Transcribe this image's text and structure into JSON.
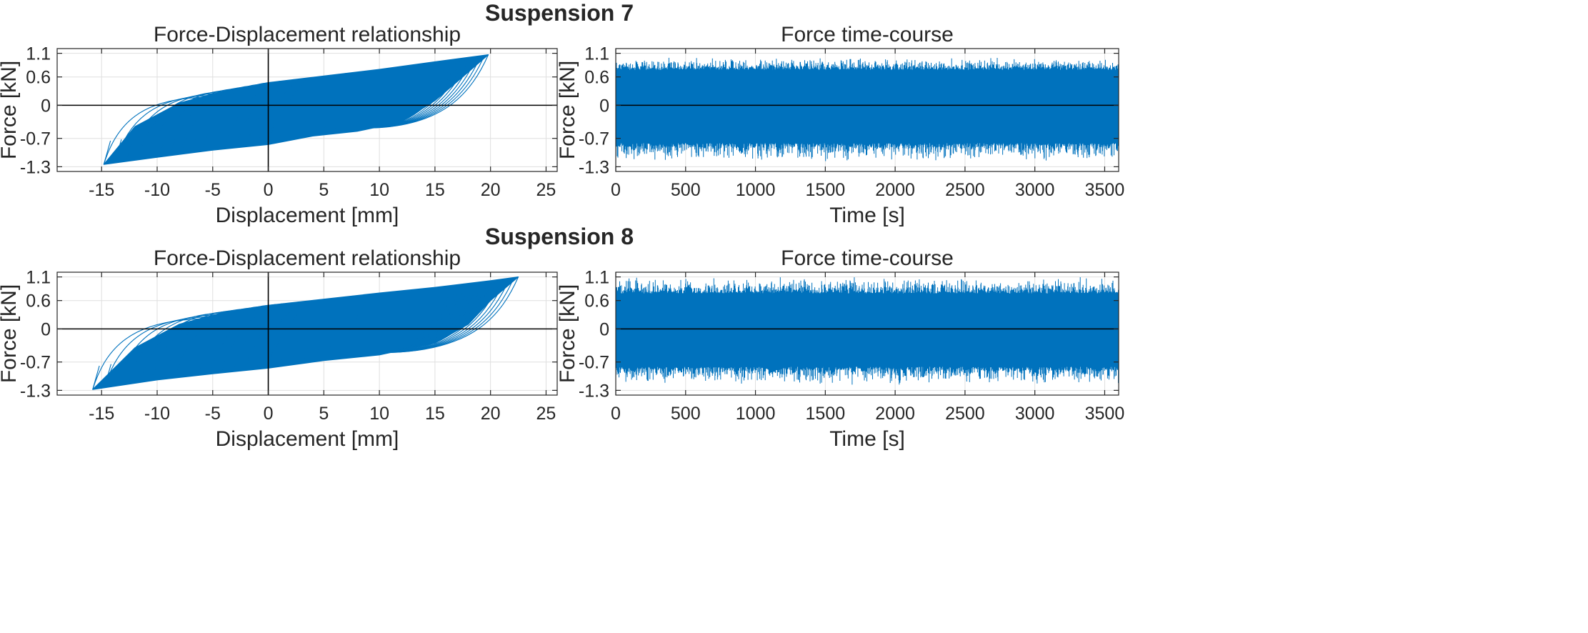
{
  "figure": {
    "sections": [
      {
        "title": "Suspension 7"
      },
      {
        "title": "Suspension 8"
      }
    ]
  },
  "colors": {
    "series": "#0072BD",
    "axis": "#262626",
    "grid": "#DFDFDF",
    "zero_line": "#000000"
  },
  "chart_data": [
    {
      "type": "line",
      "section": "Suspension 7",
      "title": "Force-Displacement relationship",
      "xlabel": "Displacement [mm]",
      "ylabel": "Force [kN]",
      "xlim": [
        -19,
        26
      ],
      "ylim": [
        -1.4,
        1.2
      ],
      "xticks": [
        -15,
        -10,
        -5,
        0,
        5,
        10,
        15,
        20,
        25
      ],
      "xtick_labels": [
        "-15",
        "-10",
        "-5",
        "0",
        "5",
        "10",
        "15",
        "20",
        "25"
      ],
      "yticks": [
        -1.3,
        -0.7,
        0,
        0.6,
        1.1
      ],
      "ytick_labels": [
        "-1.3",
        "-0.7",
        "0",
        "0.6",
        "1.1"
      ],
      "grid": true,
      "series": [
        {
          "name": "hysteresis loops",
          "x_min": -14.8,
          "x_max": 19.8,
          "y_min": -1.25,
          "y_max": 1.07,
          "upper_branch": {
            "x": [
              -14.8,
              -12,
              -8,
              -4,
              0,
              5,
              10,
              15,
              19.8
            ],
            "y": [
              -1.25,
              -0.45,
              0.05,
              0.3,
              0.48,
              0.62,
              0.76,
              0.92,
              1.07
            ]
          },
          "lower_branch": {
            "x": [
              19.8,
              17,
              15,
              12,
              8,
              4,
              0,
              -5,
              -10,
              -14.8
            ],
            "y": [
              1.07,
              0.5,
              0.1,
              -0.35,
              -0.55,
              -0.65,
              -0.83,
              -0.95,
              -1.1,
              -1.25
            ]
          }
        }
      ]
    },
    {
      "type": "line",
      "section": "Suspension 7",
      "title": "Force time-course",
      "xlabel": "Time [s]",
      "ylabel": "Force [kN]",
      "xlim": [
        0,
        3600
      ],
      "ylim": [
        -1.4,
        1.2
      ],
      "xticks": [
        0,
        500,
        1000,
        1500,
        2000,
        2500,
        3000,
        3500
      ],
      "xtick_labels": [
        "0",
        "500",
        "1000",
        "1500",
        "2000",
        "2500",
        "3000",
        "3500"
      ],
      "yticks": [
        -1.3,
        -0.7,
        0,
        0.6,
        1.1
      ],
      "ytick_labels": [
        "-1.3",
        "-0.7",
        "0",
        "0.6",
        "1.1"
      ],
      "grid": true,
      "series": [
        {
          "name": "force",
          "t_start": 0,
          "t_end": 3600,
          "dense_min": -0.8,
          "dense_max": 0.75,
          "peak_min": -1.2,
          "peak_max": 1.02
        }
      ]
    },
    {
      "type": "line",
      "section": "Suspension 8",
      "title": "Force-Displacement relationship",
      "xlabel": "Displacement [mm]",
      "ylabel": "Force [kN]",
      "xlim": [
        -19,
        26
      ],
      "ylim": [
        -1.4,
        1.2
      ],
      "xticks": [
        -15,
        -10,
        -5,
        0,
        5,
        10,
        15,
        20,
        25
      ],
      "xtick_labels": [
        "-15",
        "-10",
        "-5",
        "0",
        "5",
        "10",
        "15",
        "20",
        "25"
      ],
      "yticks": [
        -1.3,
        -0.7,
        0,
        0.6,
        1.1
      ],
      "ytick_labels": [
        "-1.3",
        "-0.7",
        "0",
        "0.6",
        "1.1"
      ],
      "grid": true,
      "series": [
        {
          "name": "hysteresis loops",
          "x_min": -15.8,
          "x_max": 22.5,
          "y_min": -1.28,
          "y_max": 1.1,
          "upper_branch": {
            "x": [
              -15.8,
              -12,
              -8,
              -4,
              0,
              5,
              10,
              15,
              20,
              22.5
            ],
            "y": [
              -1.28,
              -0.4,
              0.1,
              0.35,
              0.5,
              0.63,
              0.76,
              0.88,
              1.02,
              1.1
            ]
          },
          "lower_branch": {
            "x": [
              22.5,
              20,
              18,
              15,
              10,
              5,
              0,
              -5,
              -10,
              -15.8
            ],
            "y": [
              1.1,
              0.6,
              0.1,
              -0.3,
              -0.55,
              -0.67,
              -0.83,
              -0.95,
              -1.08,
              -1.28
            ]
          }
        }
      ]
    },
    {
      "type": "line",
      "section": "Suspension 8",
      "title": "Force time-course",
      "xlabel": "Time [s]",
      "ylabel": "Force [kN]",
      "xlim": [
        0,
        3600
      ],
      "ylim": [
        -1.4,
        1.2
      ],
      "xticks": [
        0,
        500,
        1000,
        1500,
        2000,
        2500,
        3000,
        3500
      ],
      "xtick_labels": [
        "0",
        "500",
        "1000",
        "1500",
        "2000",
        "2500",
        "3000",
        "3500"
      ],
      "yticks": [
        -1.3,
        -0.7,
        0,
        0.6,
        1.1
      ],
      "ytick_labels": [
        "-1.3",
        "-0.7",
        "0",
        "0.6",
        "1.1"
      ],
      "grid": true,
      "series": [
        {
          "name": "force",
          "t_start": 0,
          "t_end": 3600,
          "dense_min": -0.8,
          "dense_max": 0.75,
          "peak_min": -1.2,
          "peak_max": 1.1
        }
      ]
    }
  ]
}
